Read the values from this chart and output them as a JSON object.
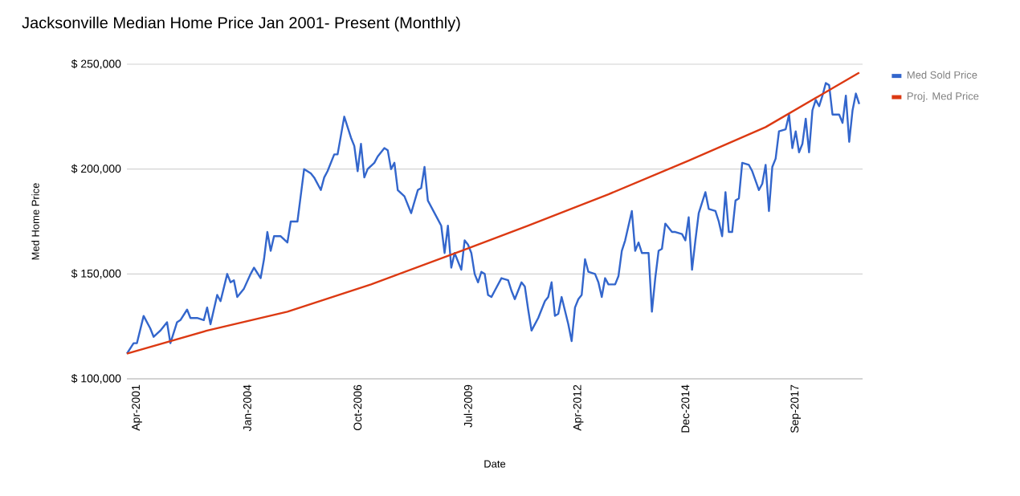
{
  "chart_data": {
    "type": "line",
    "title": "Jacksonville Median Home Price Jan 2001- Present (Monthly)",
    "xlabel": "Date",
    "ylabel": "Med Home Price",
    "xlim": [
      "2001-01",
      "2019-05"
    ],
    "ylim": [
      100000,
      250000
    ],
    "xticks": [
      {
        "value": "2001-04",
        "label": "Apr-2001"
      },
      {
        "value": "2004-01",
        "label": "Jan-2004"
      },
      {
        "value": "2006-10",
        "label": "Oct-2006"
      },
      {
        "value": "2009-07",
        "label": "Jul-2009"
      },
      {
        "value": "2012-04",
        "label": "Apr-2012"
      },
      {
        "value": "2014-12",
        "label": "Dec-2014"
      },
      {
        "value": "2017-09",
        "label": "Sep-2017"
      }
    ],
    "yticks": [
      {
        "value": 100000,
        "label": "$ 100,000"
      },
      {
        "value": 150000,
        "label": "$ 150,000"
      },
      {
        "value": 200000,
        "label": "$ 200,000"
      },
      {
        "value": 250000,
        "label": "$ 250,000"
      }
    ],
    "grid": "y",
    "legend": "right",
    "series": [
      {
        "name": "Med Sold Price",
        "color": "#3366cc",
        "x": [
          "2001-01",
          "2001-03",
          "2001-04",
          "2001-06",
          "2001-08",
          "2001-09",
          "2001-11",
          "2002-01",
          "2002-02",
          "2002-04",
          "2002-05",
          "2002-07",
          "2002-08",
          "2002-10",
          "2002-12",
          "2003-01",
          "2003-02",
          "2003-03",
          "2003-04",
          "2003-05",
          "2003-07",
          "2003-08",
          "2003-09",
          "2003-10",
          "2003-12",
          "2004-02",
          "2004-03",
          "2004-05",
          "2004-06",
          "2004-07",
          "2004-08",
          "2004-09",
          "2004-11",
          "2005-01",
          "2005-02",
          "2005-04",
          "2005-06",
          "2005-08",
          "2005-09",
          "2005-11",
          "2005-12",
          "2006-01",
          "2006-03",
          "2006-04",
          "2006-06",
          "2006-08",
          "2006-09",
          "2006-10",
          "2006-11",
          "2006-12",
          "2007-01",
          "2007-03",
          "2007-04",
          "2007-06",
          "2007-07",
          "2007-08",
          "2007-09",
          "2007-10",
          "2007-12",
          "2008-02",
          "2008-04",
          "2008-05",
          "2008-06",
          "2008-07",
          "2008-10",
          "2008-11",
          "2008-12",
          "2009-01",
          "2009-02",
          "2009-03",
          "2009-04",
          "2009-05",
          "2009-06",
          "2009-07",
          "2009-08",
          "2009-09",
          "2009-10",
          "2009-11",
          "2009-12",
          "2010-01",
          "2010-02",
          "2010-03",
          "2010-05",
          "2010-07",
          "2010-08",
          "2010-09",
          "2010-11",
          "2010-12",
          "2011-01",
          "2011-02",
          "2011-04",
          "2011-06",
          "2011-07",
          "2011-08",
          "2011-09",
          "2011-10",
          "2011-11",
          "2012-01",
          "2012-02",
          "2012-03",
          "2012-04",
          "2012-05",
          "2012-06",
          "2012-07",
          "2012-09",
          "2012-10",
          "2012-11",
          "2012-12",
          "2013-01",
          "2013-03",
          "2013-04",
          "2013-05",
          "2013-06",
          "2013-07",
          "2013-08",
          "2013-09",
          "2013-10",
          "2013-11",
          "2014-01",
          "2014-02",
          "2014-03",
          "2014-04",
          "2014-05",
          "2014-06",
          "2014-08",
          "2014-09",
          "2014-11",
          "2014-12",
          "2015-01",
          "2015-02",
          "2015-03",
          "2015-04",
          "2015-06",
          "2015-07",
          "2015-09",
          "2015-10",
          "2015-11",
          "2015-12",
          "2016-01",
          "2016-02",
          "2016-03",
          "2016-04",
          "2016-05",
          "2016-07",
          "2016-08",
          "2016-10",
          "2016-11",
          "2016-12",
          "2017-01",
          "2017-02",
          "2017-03",
          "2017-04",
          "2017-06",
          "2017-07",
          "2017-08",
          "2017-09",
          "2017-10",
          "2017-11",
          "2017-12",
          "2018-01",
          "2018-02",
          "2018-03",
          "2018-04",
          "2018-05",
          "2018-06",
          "2018-07",
          "2018-08",
          "2018-10",
          "2018-11",
          "2018-12",
          "2019-01",
          "2019-02",
          "2019-03",
          "2019-04"
        ],
        "values": [
          112000,
          117000,
          117000,
          130000,
          124000,
          120000,
          123000,
          127000,
          117000,
          127000,
          128000,
          133000,
          129000,
          129000,
          128000,
          134000,
          126000,
          133000,
          140000,
          137000,
          150000,
          146000,
          147000,
          139000,
          143000,
          150000,
          153000,
          148000,
          157000,
          170000,
          161000,
          168000,
          168000,
          165000,
          175000,
          175000,
          200000,
          198000,
          196000,
          190000,
          196000,
          199000,
          207000,
          207000,
          225000,
          215000,
          211000,
          199000,
          212000,
          196000,
          200000,
          203000,
          206000,
          210000,
          209000,
          200000,
          203000,
          190000,
          187000,
          179000,
          190000,
          191000,
          201000,
          185000,
          176000,
          173000,
          160000,
          173000,
          153000,
          160000,
          156000,
          152000,
          166000,
          164000,
          160000,
          150000,
          146000,
          151000,
          150000,
          140000,
          139000,
          142000,
          148000,
          147000,
          142000,
          138000,
          146000,
          144000,
          133000,
          123000,
          129000,
          137000,
          139000,
          146000,
          130000,
          131000,
          139000,
          126000,
          118000,
          134000,
          138000,
          140000,
          157000,
          151000,
          150000,
          146000,
          139000,
          148000,
          145000,
          145000,
          149000,
          161000,
          166000,
          173000,
          180000,
          161000,
          165000,
          160000,
          160000,
          132000,
          148000,
          161000,
          162000,
          174000,
          170000,
          170000,
          169000,
          166000,
          177000,
          152000,
          166000,
          179000,
          189000,
          181000,
          180000,
          175000,
          168000,
          189000,
          170000,
          170000,
          185000,
          186000,
          203000,
          202000,
          199000,
          190000,
          193000,
          202000,
          180000,
          201000,
          205000,
          218000,
          219000,
          226000,
          210000,
          218000,
          208000,
          212000,
          224000,
          208000,
          228000,
          233000,
          230000,
          235000,
          241000,
          240000,
          226000,
          226000,
          222000,
          235000,
          213000,
          228000,
          236000,
          231000
        ]
      },
      {
        "name": "Proj. Med Price",
        "color": "#dc3912",
        "x": [
          "2001-01",
          "2003-01",
          "2005-01",
          "2007-02",
          "2009-05",
          "2011-01",
          "2013-01",
          "2015-01",
          "2016-12",
          "2019-04"
        ],
        "values": [
          112000,
          123000,
          132000,
          145000,
          161000,
          173000,
          188000,
          204000,
          220000,
          246000
        ]
      }
    ]
  }
}
